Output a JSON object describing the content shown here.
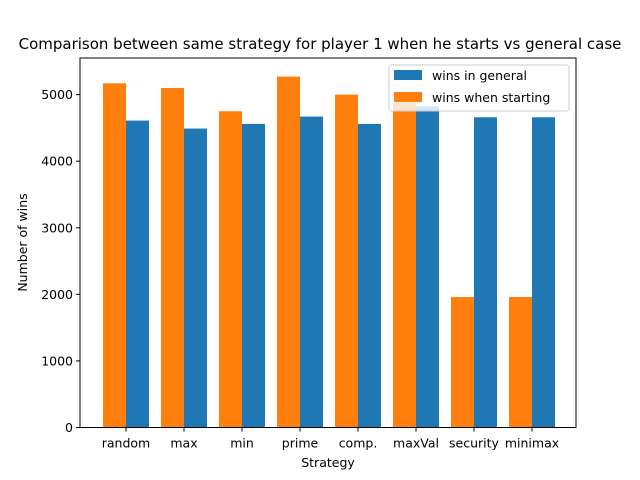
{
  "chart_data": {
    "type": "bar",
    "title": "Comparison between same strategy for player 1 when he starts vs general case",
    "xlabel": "Strategy",
    "ylabel": "Number of wins",
    "categories": [
      "random",
      "max",
      "min",
      "prime",
      "comp.",
      "maxVal",
      "security",
      "minimax"
    ],
    "ylim": [
      0,
      5550
    ],
    "yticks": [
      0,
      1000,
      2000,
      3000,
      4000,
      5000
    ],
    "grid": false,
    "legend_position": "upper right",
    "series": [
      {
        "name": "wins when starting",
        "color": "#ff7f0e",
        "values": [
          5170,
          5100,
          4750,
          5270,
          5000,
          4880,
          1960,
          1960
        ]
      },
      {
        "name": "wins in general",
        "color": "#1f77b4",
        "values": [
          4610,
          4490,
          4560,
          4670,
          4560,
          4820,
          4660,
          4660
        ]
      }
    ],
    "legend_order": [
      1,
      0
    ]
  }
}
